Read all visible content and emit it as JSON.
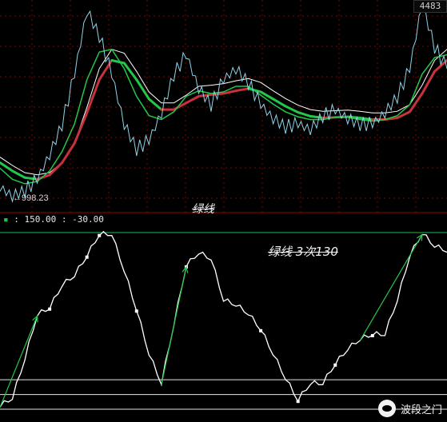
{
  "panel_upper": {
    "price_badge": "4483",
    "low_label": "998.23"
  },
  "panel_lower": {
    "title": "绿线",
    "param_upper": "150.00",
    "param_lower": "-30.00",
    "annotation": "绿线   3次130"
  },
  "watermark": {
    "text": "波段之门",
    "icon": "wechat-icon"
  },
  "colors": {
    "background": "#000000",
    "price": "#8fd3e8",
    "green_line": "#22c84a",
    "red_line": "#c8323c",
    "white_line": "#ffffff",
    "grid": "#8a0000",
    "upper_level": "#21c04a"
  },
  "chart_data": [
    {
      "type": "line",
      "series": [
        {
          "values": [
            1150,
            998,
            1100,
            1300,
            1750,
            2300,
            3200,
            4350,
            3900,
            3200,
            2300,
            1850,
            2000,
            2500,
            3200,
            3550,
            2950,
            2650,
            3100,
            3300,
            3050,
            2650,
            2400,
            2250,
            2300,
            2200,
            2450,
            2550,
            2400,
            2300,
            2300,
            2500,
            2800,
            3300,
            4483,
            3700,
            3300
          ]
        },
        {
          "values": [
            1500,
            1300,
            1220,
            1260,
            1450,
            1800,
            2300,
            3100,
            3600,
            3650,
            3300,
            2800,
            2450,
            2380,
            2520,
            2800,
            2900,
            2850,
            2880,
            2980,
            2980,
            2820,
            2660,
            2520,
            2430,
            2380,
            2380,
            2420,
            2420,
            2380,
            2350,
            2380,
            2450,
            2650,
            3200,
            3500,
            3550
          ]
        },
        {
          "values": [
            1600,
            1450,
            1330,
            1300,
            1380,
            1600,
            1950,
            2500,
            3100,
            3450,
            3400,
            3100,
            2750,
            2560,
            2560,
            2680,
            2800,
            2830,
            2850,
            2900,
            2940,
            2880,
            2750,
            2620,
            2510,
            2440,
            2410,
            2420,
            2430,
            2410,
            2380,
            2380,
            2410,
            2520,
            2850,
            3250,
            3450
          ]
        },
        {
          "values": [
            1700,
            1550,
            1420,
            1380,
            1420,
            1600,
            1950,
            2600,
            3300,
            3650,
            3580,
            3250,
            2880,
            2680,
            2680,
            2820,
            2980,
            3000,
            3030,
            3080,
            3120,
            3050,
            2900,
            2760,
            2640,
            2560,
            2530,
            2540,
            2550,
            2530,
            2500,
            2500,
            2530,
            2650,
            3000,
            3450,
            3650
          ]
        }
      ]
    },
    {
      "type": "line",
      "series": [
        {
          "values": [
            -28,
            -20,
            20,
            65,
            72,
            95,
            105,
            125,
            147,
            147,
            110,
            70,
            25,
            -5,
            55,
            115,
            128,
            122,
            80,
            75,
            66,
            50,
            25,
            0,
            -22,
            -5,
            -5,
            15,
            30,
            40,
            45,
            45,
            80,
            125,
            148,
            135,
            130
          ]
        }
      ],
      "levels": [
        150,
        0,
        -15,
        -30
      ],
      "ylim": [
        -30,
        150
      ]
    }
  ]
}
